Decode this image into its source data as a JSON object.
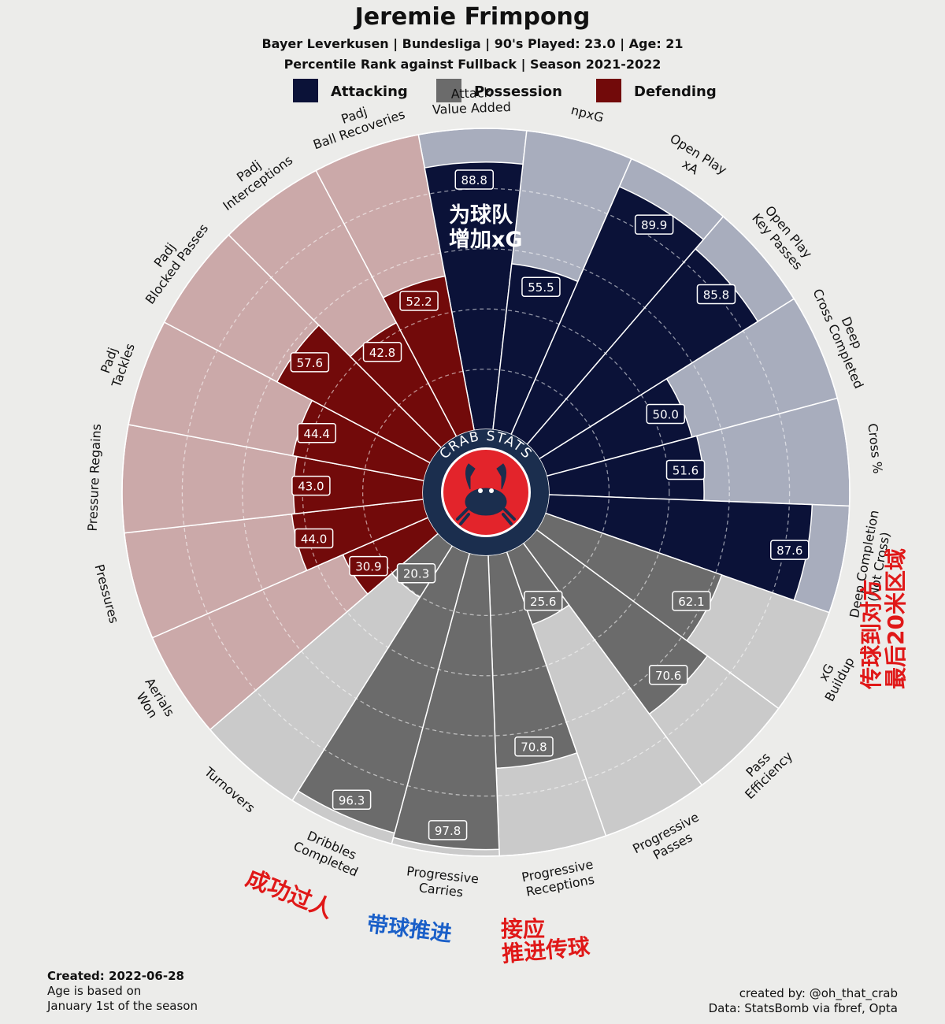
{
  "title": "Jeremie Frimpong",
  "subtitle_line1": "Bayer Leverkusen  | Bundesliga | 90's Played: 23.0 | Age: 21",
  "subtitle_line2": "Percentile Rank against Fullback  | Season 2021-2022",
  "legend": [
    {
      "label": "Attacking",
      "color": "#0b1238"
    },
    {
      "label": "Possession",
      "color": "#6b6b6b"
    },
    {
      "label": "Defending",
      "color": "#720a0a"
    }
  ],
  "logo_text": "CRAB STATS",
  "footer": {
    "created_label": "Created: 2022-06-28",
    "note_line1": "Age is based on",
    "note_line2": "January 1st of the season",
    "credit_line1": "created by: @oh_that_crab",
    "credit_line2": "Data: StatsBomb via fbref, Opta"
  },
  "annotations": {
    "attack_value": [
      "为球队",
      "增加xG"
    ],
    "deep_completion": [
      "传球到对方",
      "最后20米区域"
    ],
    "dribbles": [
      "成功过人"
    ],
    "carries": [
      "带球推进"
    ],
    "receptions": [
      "接应",
      "推进传球"
    ]
  },
  "chart_data": {
    "type": "polar-bar",
    "title": "Jeremie Frimpong",
    "range": [
      0,
      100
    ],
    "categories": [
      {
        "label": "Attack\nValue Added",
        "value": 88.8,
        "group": "Attacking"
      },
      {
        "label": "npxG",
        "value": 55.5,
        "group": "Attacking"
      },
      {
        "label": "Open Play\nxA",
        "value": 89.9,
        "group": "Attacking"
      },
      {
        "label": "Open Play\nKey Passes",
        "value": 85.8,
        "group": "Attacking"
      },
      {
        "label": "Deep\nCross Completed",
        "value": 50.0,
        "group": "Attacking"
      },
      {
        "label": "Cross %",
        "value": 51.6,
        "group": "Attacking"
      },
      {
        "label": "Deep Completion\n(Not Cross)",
        "value": 87.6,
        "group": "Attacking"
      },
      {
        "label": "xG\nBuildup",
        "value": 62.1,
        "group": "Possession"
      },
      {
        "label": "Pass\nEfficiency",
        "value": 70.6,
        "group": "Possession"
      },
      {
        "label": "Progressive\nPasses",
        "value": 25.6,
        "group": "Possession"
      },
      {
        "label": "Progressive\nReceptions",
        "value": 70.8,
        "group": "Possession"
      },
      {
        "label": "Progressive\nCarries",
        "value": 97.8,
        "group": "Possession"
      },
      {
        "label": "Dribbles\nCompleted",
        "value": 96.3,
        "group": "Possession"
      },
      {
        "label": "Turnovers",
        "value": 20.3,
        "group": "Possession"
      },
      {
        "label": "Aerials\nWon",
        "value": 30.9,
        "group": "Defending"
      },
      {
        "label": "Pressures",
        "value": 44.0,
        "group": "Defending"
      },
      {
        "label": "Pressure Regains",
        "value": 43.0,
        "group": "Defending"
      },
      {
        "label": "Padj\nTackles",
        "value": 44.4,
        "group": "Defending"
      },
      {
        "label": "Padj\nBlocked Passes",
        "value": 57.6,
        "group": "Defending"
      },
      {
        "label": "Padj\nInterceptions",
        "value": 42.8,
        "group": "Defending"
      },
      {
        "label": "Padj\nBall Recoveries",
        "value": 52.2,
        "group": "Defending"
      }
    ],
    "group_colors": {
      "Attacking": {
        "bar": "#0b1238",
        "bg": "#a8adbd"
      },
      "Possession": {
        "bar": "#6b6b6b",
        "bg": "#cacaca"
      },
      "Defending": {
        "bar": "#720a0a",
        "bg": "#cba9a9"
      }
    },
    "annotation_color_red": "#e01818",
    "annotation_color_blue": "#1a5fc8",
    "logo_color": "#e3242b",
    "logo_ring_color": "#1b2e4e"
  }
}
